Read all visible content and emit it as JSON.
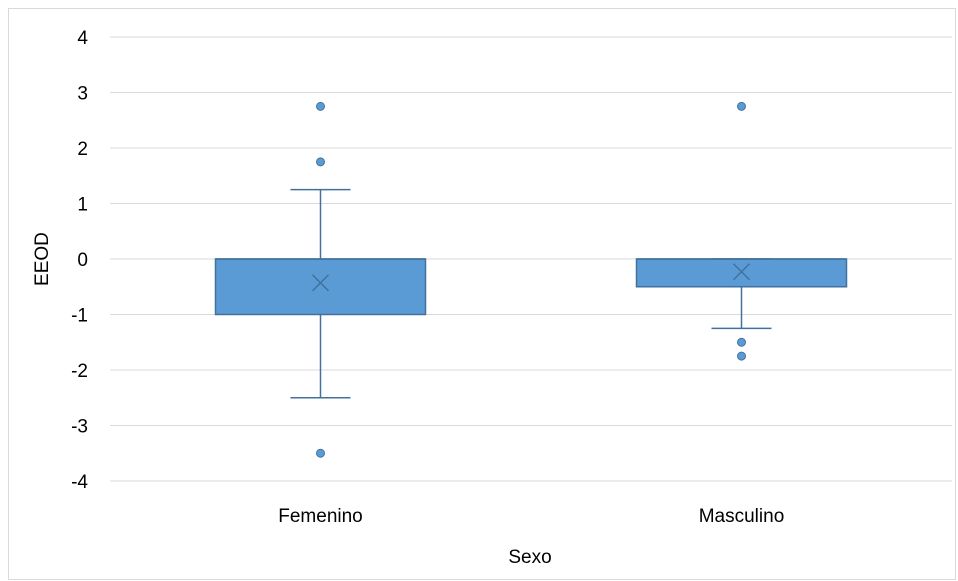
{
  "chart_data": {
    "type": "box",
    "title": "",
    "xlabel": "Sexo",
    "ylabel": "EEOD",
    "ylim": [
      -4,
      4
    ],
    "yticks": [
      4,
      3,
      2,
      1,
      0,
      -1,
      -2,
      -3,
      -4
    ],
    "grid": true,
    "color": "#5b9bd5",
    "stroke_color": "#41719c",
    "categories": [
      "Femenino",
      "Masculino"
    ],
    "boxes": [
      {
        "category": "Femenino",
        "whisker_low": -2.5,
        "q1": -1,
        "median": 0,
        "q3": 0,
        "whisker_high": 1.25,
        "mean": -0.43,
        "outliers": [
          2.75,
          1.75,
          -3.5
        ]
      },
      {
        "category": "Masculino",
        "whisker_low": -1.25,
        "q1": -0.5,
        "median": 0,
        "q3": 0,
        "whisker_high": 0,
        "mean": -0.23,
        "outliers": [
          2.75,
          -1.5,
          -1.75
        ]
      }
    ]
  }
}
